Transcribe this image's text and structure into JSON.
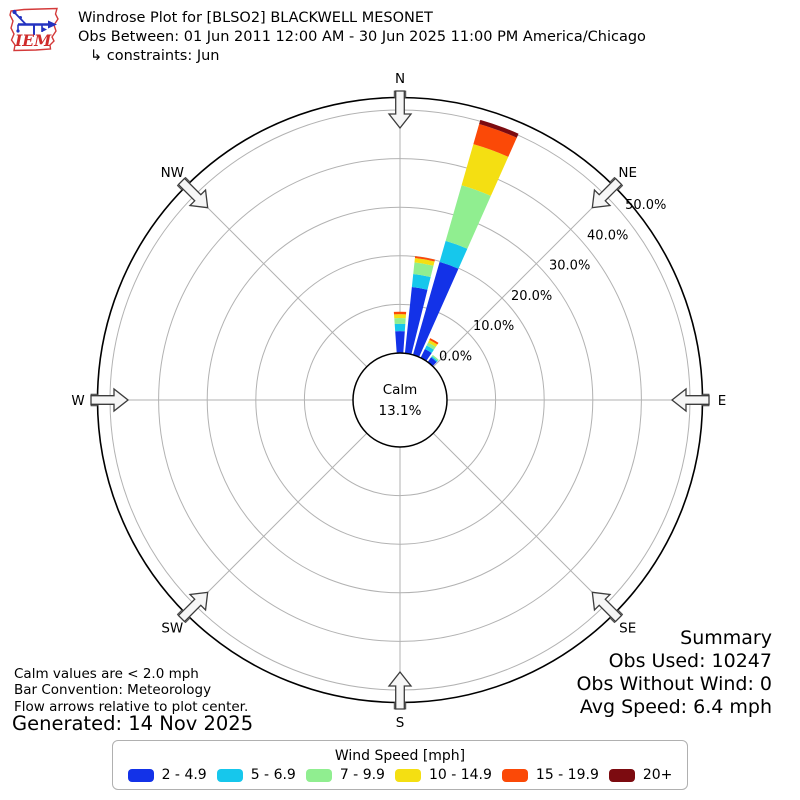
{
  "header": {
    "logo_text": "IEM",
    "title": "Windrose Plot for [BLSO2] BLACKWELL MESONET",
    "subtitle": "Obs Between: 01 Jun 2011 12:00 AM - 30 Jun 2025 11:00 PM America/Chicago",
    "constraints": "↳ constraints: Jun"
  },
  "footnotes": {
    "lines": [
      "Calm values are < 2.0 mph",
      "Bar Convention: Meteorology",
      "Flow arrows relative to plot center."
    ],
    "generated": "Generated: 14 Nov 2025"
  },
  "summary": {
    "title": "Summary",
    "lines": [
      "Obs Used: 10247",
      "Obs Without Wind: 0",
      "Avg Speed: 6.4 mph"
    ]
  },
  "legend": {
    "title": "Wind Speed [mph]",
    "items": [
      {
        "label": "2 - 4.9",
        "color": "#1332e8"
      },
      {
        "label": "5 - 6.9",
        "color": "#16c7ec"
      },
      {
        "label": "7 - 9.9",
        "color": "#90ee90"
      },
      {
        "label": "10 - 14.9",
        "color": "#f4df12"
      },
      {
        "label": "15 - 19.9",
        "color": "#fb4907"
      },
      {
        "label": "20+",
        "color": "#7c0b10"
      }
    ]
  },
  "chart_data": {
    "type": "windrose",
    "station": "[BLSO2] BLACKWELL MESONET",
    "calm": {
      "label": "Calm",
      "value": "13.1%"
    },
    "compass_labels": [
      "N",
      "NE",
      "E",
      "SE",
      "S",
      "SW",
      "W",
      "NW"
    ],
    "flow_arrow_dirs_deg": [
      0,
      45,
      90,
      135,
      180,
      225,
      270,
      315
    ],
    "ring_ticks": [
      {
        "pct": 0,
        "label": "0.0%"
      },
      {
        "pct": 10,
        "label": "10.0%"
      },
      {
        "pct": 20,
        "label": "20.0%"
      },
      {
        "pct": 30,
        "label": "30.0%"
      },
      {
        "pct": 40,
        "label": "40.0%"
      },
      {
        "pct": 50,
        "label": "50.0%"
      }
    ],
    "speed_bins_mph": [
      "2 - 4.9",
      "5 - 6.9",
      "7 - 9.9",
      "10 - 14.9",
      "15 - 19.9",
      "20+"
    ],
    "bin_colors": [
      "#1332e8",
      "#16c7ec",
      "#90ee90",
      "#f4df12",
      "#fb4907",
      "#7c0b10"
    ],
    "petals": [
      {
        "dir_deg": 0,
        "pct_by_bin": [
          4.5,
          1.5,
          1.2,
          0.8,
          0.5,
          0
        ],
        "total_pct": 8.5
      },
      {
        "dir_deg": 10,
        "pct_by_bin": [
          13.7,
          2.7,
          2.4,
          0.9,
          0.4,
          0
        ],
        "total_pct": 20.1
      },
      {
        "dir_deg": 20,
        "pct_by_bin": [
          19.9,
          4.5,
          11.9,
          8.8,
          4.3,
          0.9
        ],
        "total_pct": 50.3
      },
      {
        "dir_deg": 30,
        "pct_by_bin": [
          2.0,
          0.8,
          0.7,
          0.6,
          0.4,
          0
        ],
        "total_pct": 4.5
      },
      {
        "dir_deg": 40,
        "pct_by_bin": [
          1.2,
          0.3,
          0.3,
          0,
          0,
          0
        ],
        "total_pct": 1.8
      }
    ]
  }
}
